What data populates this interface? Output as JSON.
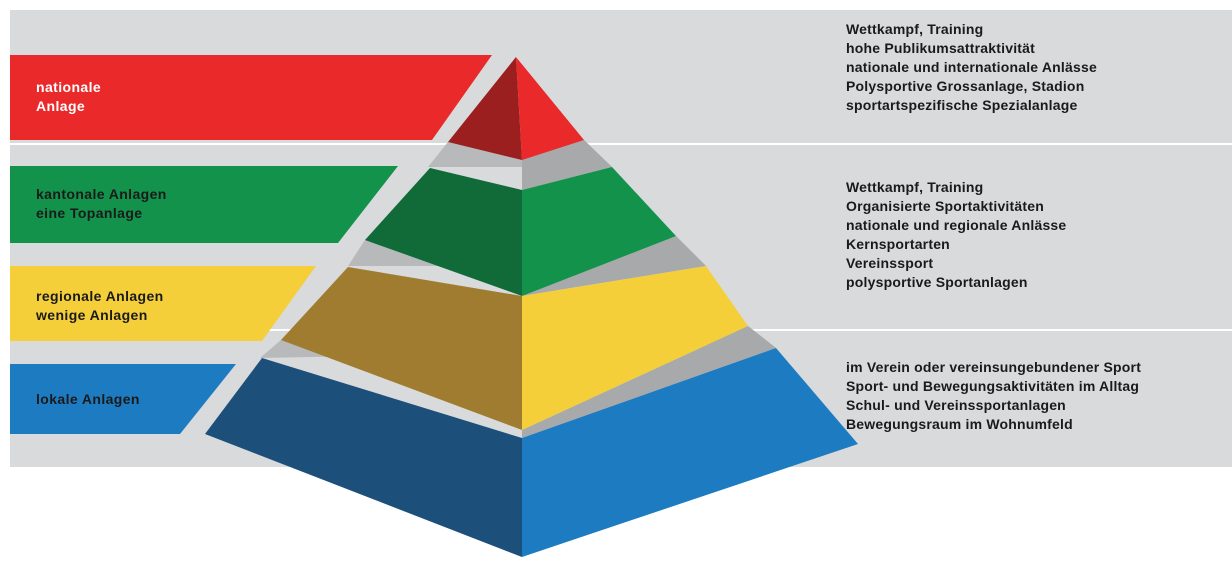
{
  "colors": {
    "background_band": "#d9dadc",
    "national": "#ea2a2a",
    "cantonal": "#12924a",
    "regional": "#f5cf3a",
    "local": "#1d7cc1",
    "label_text_dark": "#1a1a1a",
    "label_text_light": "#ffffff"
  },
  "levels": [
    {
      "id": "national",
      "label": "nationale\nAnlage"
    },
    {
      "id": "cantonal",
      "label": "kantonale Anlagen\neine Topanlage"
    },
    {
      "id": "regional",
      "label": "regionale Anlagen\nwenige Anlagen"
    },
    {
      "id": "local",
      "label": "lokale Anlagen"
    }
  ],
  "descriptions": [
    {
      "lines": [
        "Wettkampf, Training",
        "hohe Publikumsattraktivität",
        "nationale und internationale Anlässe",
        "Polysportive Grossanlage, Stadion",
        "sportartspezifische Spezialanlage"
      ]
    },
    {
      "lines": [
        "Wettkampf, Training",
        "Organisierte Sportaktivitäten",
        "nationale und regionale Anlässe",
        "Kernsportarten",
        "Vereinssport",
        "polysportive Sportanlagen"
      ]
    },
    {
      "lines": [
        "im Verein oder vereinsungebundener Sport",
        "Sport- und Bewegungsaktivitäten im Alltag",
        "Schul- und Vereinssportanlagen",
        "Bewegungsraum im Wohnumfeld"
      ]
    }
  ]
}
